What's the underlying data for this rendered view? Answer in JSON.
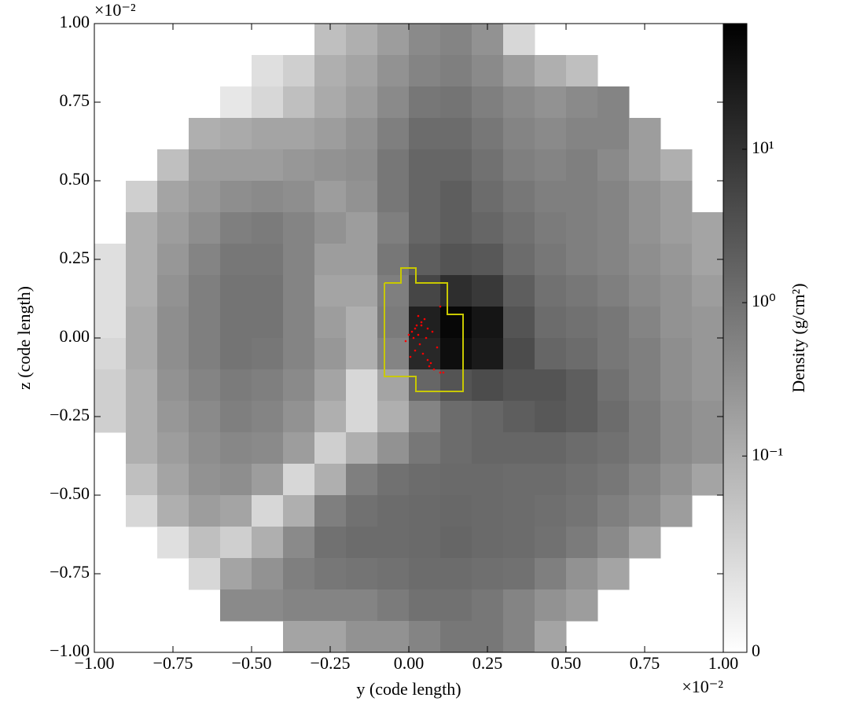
{
  "chart_data": {
    "type": "heatmap",
    "x_label": "y  (code length)",
    "y_label": "z  (code length)",
    "x_offset_label": "×10⁻²",
    "y_offset_label": "×10⁻²",
    "colorbar_label": "Density  (g/cm²)",
    "colormap_colors": [
      "#ffffff",
      "#000000"
    ],
    "colorbar_scale": "symlog",
    "linthresh": 0.1,
    "clim": [
      0,
      66
    ],
    "cticks": [
      {
        "value": 0,
        "label": "0"
      },
      {
        "value": 0.1,
        "label": "10⁻¹"
      },
      {
        "value": 1,
        "label": "10⁰"
      },
      {
        "value": 10,
        "label": "10¹"
      }
    ],
    "xlim": [
      -1,
      1
    ],
    "ylim": [
      -1,
      1
    ],
    "xticks": [
      {
        "value": -1,
        "label": "−1.00"
      },
      {
        "value": -0.75,
        "label": "−0.75"
      },
      {
        "value": -0.5,
        "label": "−0.50"
      },
      {
        "value": -0.25,
        "label": "−0.25"
      },
      {
        "value": 0,
        "label": "0.00"
      },
      {
        "value": 0.25,
        "label": "0.25"
      },
      {
        "value": 0.5,
        "label": "0.50"
      },
      {
        "value": 0.75,
        "label": "0.75"
      },
      {
        "value": 1,
        "label": "1.00"
      }
    ],
    "yticks": [
      {
        "value": -1,
        "label": "−1.00"
      },
      {
        "value": -0.75,
        "label": "−0.75"
      },
      {
        "value": -0.5,
        "label": "−0.50"
      },
      {
        "value": -0.25,
        "label": "−0.25"
      },
      {
        "value": 0,
        "label": "0.00"
      },
      {
        "value": 0.25,
        "label": "0.25"
      },
      {
        "value": 0.5,
        "label": "0.50"
      },
      {
        "value": 0.75,
        "label": "0.75"
      },
      {
        "value": 1,
        "label": "1.00"
      }
    ],
    "values": [
      [
        null,
        null,
        null,
        null,
        null,
        null,
        null,
        0.08,
        0.1,
        0.2,
        0.4,
        0.5,
        0.3,
        0.05,
        null,
        null,
        null,
        null,
        null,
        null
      ],
      [
        null,
        null,
        null,
        null,
        null,
        0.04,
        0.06,
        0.1,
        0.15,
        0.3,
        0.5,
        0.6,
        0.4,
        0.2,
        0.1,
        0.08,
        null,
        null,
        null,
        null
      ],
      [
        null,
        null,
        null,
        null,
        0.03,
        0.05,
        0.08,
        0.12,
        0.2,
        0.4,
        0.8,
        0.9,
        0.6,
        0.4,
        0.3,
        0.4,
        0.5,
        null,
        null,
        null
      ],
      [
        null,
        null,
        null,
        0.1,
        0.12,
        0.15,
        0.15,
        0.2,
        0.3,
        0.6,
        1.2,
        1.2,
        0.8,
        0.5,
        0.4,
        0.5,
        0.5,
        0.2,
        null,
        null
      ],
      [
        null,
        null,
        0.08,
        0.2,
        0.2,
        0.2,
        0.25,
        0.3,
        0.35,
        0.8,
        1.5,
        1.5,
        1.0,
        0.6,
        0.5,
        0.6,
        0.4,
        0.2,
        0.1,
        null
      ],
      [
        null,
        0.06,
        0.15,
        0.25,
        0.35,
        0.4,
        0.35,
        0.2,
        0.3,
        0.8,
        1.5,
        2,
        1.2,
        0.8,
        0.6,
        0.6,
        0.5,
        0.3,
        0.2,
        null
      ],
      [
        null,
        0.1,
        0.2,
        0.35,
        0.6,
        0.7,
        0.5,
        0.3,
        0.2,
        0.6,
        1.5,
        2,
        1.5,
        1,
        0.7,
        0.6,
        0.5,
        0.3,
        0.2,
        0.15
      ],
      [
        0.04,
        0.1,
        0.25,
        0.5,
        0.8,
        0.8,
        0.5,
        0.2,
        0.2,
        0.8,
        2,
        3,
        2.5,
        1.2,
        0.8,
        0.6,
        0.5,
        0.35,
        0.25,
        0.15
      ],
      [
        0.04,
        0.1,
        0.3,
        0.6,
        0.9,
        0.9,
        0.5,
        0.15,
        0.15,
        0.6,
        5,
        12,
        8,
        2,
        1,
        0.8,
        0.6,
        0.4,
        0.3,
        0.2
      ],
      [
        0.04,
        0.12,
        0.35,
        0.6,
        0.9,
        0.9,
        0.5,
        0.2,
        0.1,
        0.7,
        20,
        50,
        30,
        3,
        1.2,
        1,
        0.8,
        0.5,
        0.3,
        0.25
      ],
      [
        0.05,
        0.12,
        0.35,
        0.6,
        0.9,
        0.8,
        0.5,
        0.25,
        0.1,
        0.5,
        15,
        40,
        25,
        4,
        1.5,
        1.2,
        0.8,
        0.6,
        0.35,
        0.25
      ],
      [
        0.06,
        0.1,
        0.3,
        0.5,
        0.7,
        0.6,
        0.4,
        0.15,
        0.05,
        0.15,
        1.5,
        3,
        4,
        3,
        3,
        2,
        1,
        0.6,
        0.35,
        0.25
      ],
      [
        0.06,
        0.1,
        0.25,
        0.4,
        0.6,
        0.5,
        0.3,
        0.1,
        0.05,
        0.1,
        0.5,
        1.2,
        1.5,
        2,
        2.5,
        2,
        1.2,
        0.7,
        0.4,
        0.3
      ],
      [
        null,
        0.1,
        0.2,
        0.35,
        0.45,
        0.4,
        0.2,
        0.06,
        0.1,
        0.3,
        0.8,
        1.2,
        1.5,
        1.5,
        1.5,
        1.2,
        1,
        0.7,
        0.4,
        0.3
      ],
      [
        null,
        0.08,
        0.15,
        0.3,
        0.35,
        0.2,
        0.05,
        0.1,
        0.6,
        1,
        1.2,
        1.3,
        1.3,
        1.2,
        1.2,
        1,
        0.8,
        0.5,
        0.3,
        0.15
      ],
      [
        null,
        0.05,
        0.1,
        0.2,
        0.15,
        0.05,
        0.1,
        0.6,
        1,
        1.2,
        1.3,
        1.4,
        1.3,
        1.2,
        1.1,
        0.9,
        0.6,
        0.4,
        0.2,
        null
      ],
      [
        null,
        null,
        0.04,
        0.08,
        0.06,
        0.1,
        0.4,
        1,
        1.2,
        1.2,
        1.3,
        1.5,
        1.3,
        1.2,
        1,
        0.7,
        0.4,
        0.15,
        null,
        null
      ],
      [
        null,
        null,
        null,
        0.05,
        0.15,
        0.3,
        0.6,
        0.8,
        0.9,
        1,
        1.2,
        1.2,
        1.1,
        1,
        0.6,
        0.3,
        0.15,
        null,
        null,
        null
      ],
      [
        null,
        null,
        null,
        null,
        0.4,
        0.4,
        0.5,
        0.5,
        0.5,
        0.7,
        1,
        1,
        0.8,
        0.5,
        0.3,
        0.2,
        null,
        null,
        null,
        null
      ],
      [
        null,
        null,
        null,
        null,
        null,
        null,
        0.15,
        0.15,
        0.3,
        0.3,
        0.5,
        0.8,
        0.8,
        0.5,
        0.15,
        null,
        null,
        null,
        null,
        null
      ]
    ],
    "contour": {
      "color": "#c8c800",
      "x": [
        -0.0775,
        -0.025,
        -0.025,
        0.0225,
        0.0225,
        0.1225,
        0.1225,
        0.1725,
        0.1725,
        0.0225,
        0.0225,
        -0.0775,
        -0.0775
      ],
      "y": [
        0.175,
        0.175,
        0.2225,
        0.2225,
        0.175,
        0.175,
        0.075,
        0.075,
        -0.17,
        -0.17,
        -0.1225,
        -0.1225,
        0.175
      ]
    },
    "particles": {
      "color": "#ff0000",
      "x": [
        0.01,
        0.02,
        0.03,
        0.015,
        0.025,
        0.04,
        0.05,
        0.06,
        0.0,
        -0.01,
        0.035,
        0.045,
        0.07,
        0.08,
        0.1,
        0.11,
        0.06,
        0.09,
        0.02,
        0.03,
        0.055,
        0.005,
        0.075,
        0.065,
        0.1,
        0.04
      ],
      "y": [
        0.02,
        0.03,
        0.01,
        0.0,
        0.04,
        0.05,
        0.06,
        0.03,
        0.01,
        -0.01,
        -0.02,
        -0.05,
        -0.08,
        -0.1,
        -0.11,
        -0.11,
        -0.07,
        -0.03,
        -0.04,
        0.07,
        0.0,
        -0.06,
        0.02,
        -0.09,
        0.1,
        0.04
      ]
    }
  }
}
